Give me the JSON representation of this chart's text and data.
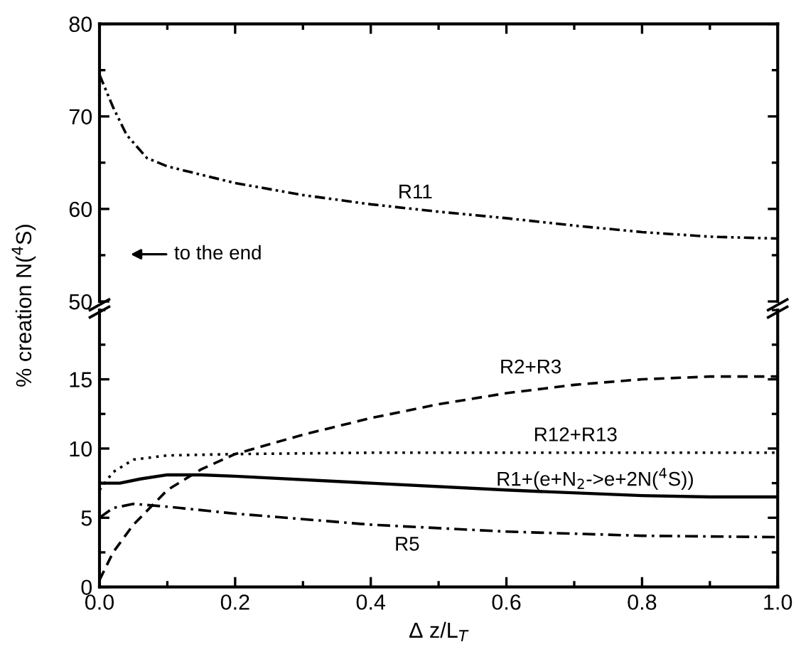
{
  "chart_data": [
    {
      "type": "line",
      "xlim": [
        0,
        1.0
      ],
      "xticks": [
        0.2,
        0.4,
        0.6,
        0.8
      ],
      "ylim": [
        50,
        80
      ],
      "yticks": [
        50,
        60,
        70,
        80
      ],
      "tick_labels": "y",
      "annotations": [
        "to the end"
      ],
      "series": [
        {
          "name": "R11",
          "color": "#000000",
          "line_style": "dashdotdot",
          "x": [
            0,
            0.02,
            0.04,
            0.07,
            0.1,
            0.2,
            0.3,
            0.4,
            0.5,
            0.6,
            0.7,
            0.8,
            0.9,
            1.0
          ],
          "values": [
            74.5,
            71,
            68,
            65.5,
            64.6,
            62.8,
            61.5,
            60.5,
            59.7,
            59,
            58.2,
            57.5,
            57,
            56.8
          ]
        }
      ]
    },
    {
      "type": "line",
      "xlim": [
        0,
        1.0
      ],
      "xticks": [
        {
          "value": 0,
          "label": "0.0"
        },
        0.2,
        0.4,
        0.6,
        0.8,
        {
          "value": 1.0,
          "label": "1.0"
        }
      ],
      "ylim": [
        0,
        20
      ],
      "yticks": [
        0,
        5,
        10,
        15
      ],
      "xlabel": "Δ z/L$_{T}$",
      "ylabel": "% creation N($^{4}$S)",
      "series": [
        {
          "name": "R2+R3",
          "color": "#000000",
          "line_style": "dashed",
          "x": [
            0,
            0.02,
            0.05,
            0.1,
            0.15,
            0.2,
            0.3,
            0.4,
            0.5,
            0.6,
            0.7,
            0.8,
            0.9,
            1.0
          ],
          "values": [
            0.5,
            2.5,
            4.5,
            7,
            8.5,
            9.6,
            11,
            12.2,
            13.2,
            14,
            14.6,
            15,
            15.2,
            15.2
          ]
        },
        {
          "name": "R12+R13",
          "color": "#000000",
          "line_style": "dotted",
          "x": [
            0,
            0.02,
            0.05,
            0.1,
            0.2,
            0.4,
            1.0
          ],
          "values": [
            7,
            8.3,
            9.2,
            9.5,
            9.6,
            9.7,
            9.7
          ]
        },
        {
          "name": "R1+(e+N$_{2}$->e+2N($^{4}$S))",
          "color": "#000000",
          "line_style": "solid",
          "x": [
            0,
            0.03,
            0.06,
            0.1,
            0.15,
            0.2,
            0.4,
            0.6,
            0.8,
            0.9,
            1.0
          ],
          "values": [
            7.5,
            7.5,
            7.8,
            8.1,
            8.1,
            8.0,
            7.5,
            7.0,
            6.6,
            6.5,
            6.5
          ]
        },
        {
          "name": "R5",
          "color": "#000000",
          "line_style": "dashdot",
          "x": [
            0,
            0.02,
            0.05,
            0.1,
            0.2,
            0.4,
            0.6,
            0.8,
            1.0
          ],
          "values": [
            5,
            5.7,
            6.0,
            5.8,
            5.3,
            4.5,
            4.0,
            3.7,
            3.6
          ]
        }
      ]
    }
  ]
}
